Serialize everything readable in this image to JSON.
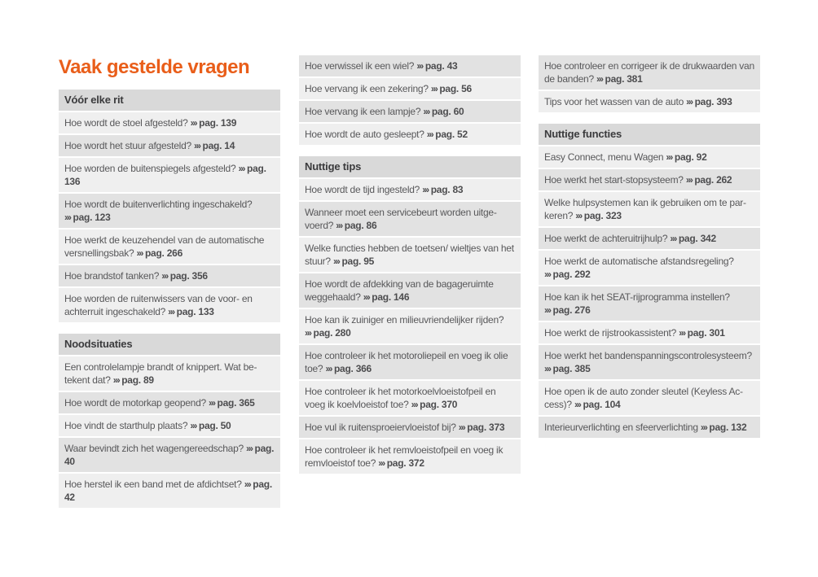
{
  "page": {
    "title": "Vaak gestelde vragen",
    "chevron": "›››",
    "colors": {
      "accent": "#E95E1A",
      "header_bg": "#d9d9d9",
      "header_text": "#3b3b3d",
      "row_light": "#efefef",
      "row_dark": "#e2e2e2",
      "text": "#58585a",
      "ref_text": "#4d4d4f",
      "background": "#ffffff"
    }
  },
  "columns": [
    {
      "blocks": [
        {
          "header": "Vóór elke rit"
        },
        {
          "shade": "light",
          "q": "Hoe wordt de stoel afgesteld?",
          "ref": "pag. 139"
        },
        {
          "shade": "dark",
          "q": "Hoe wordt het stuur afgesteld?",
          "ref": "pag. 14"
        },
        {
          "shade": "light",
          "q": "Hoe worden de buitenspiegels afgesteld?",
          "ref": "pag. 136"
        },
        {
          "shade": "dark",
          "q": "Hoe wordt de buitenverlichting ingeschakeld?",
          "ref": "pag. 123"
        },
        {
          "shade": "light",
          "q": "Hoe werkt de keuzehendel van de automatische versnellingsbak?",
          "ref": "pag. 266"
        },
        {
          "shade": "dark",
          "q": "Hoe brandstof tanken?",
          "ref": "pag. 356"
        },
        {
          "shade": "light",
          "q": "Hoe worden de ruitenwissers van de voor- en achterruit ingeschakeld?",
          "ref": "pag. 133"
        },
        {
          "header": "Noodsituaties"
        },
        {
          "shade": "light",
          "q": "Een controlelampje brandt of knippert. Wat be­tekent dat?",
          "ref": "pag. 89"
        },
        {
          "shade": "dark",
          "q": "Hoe wordt de motorkap geopend?",
          "ref": "pag. 365"
        },
        {
          "shade": "light",
          "q": "Hoe vindt de starthulp plaats?",
          "ref": "pag. 50"
        },
        {
          "shade": "dark",
          "q": "Waar bevindt zich het wagengereedschap?",
          "ref": "pag. 40"
        },
        {
          "shade": "light",
          "q": "Hoe herstel ik een band met de afdichtset?",
          "ref": "pag. 42"
        }
      ]
    },
    {
      "blocks": [
        {
          "shade": "dark",
          "q": "Hoe verwissel ik een wiel?",
          "ref": "pag. 43"
        },
        {
          "shade": "light",
          "q": "Hoe vervang ik een zekering?",
          "ref": "pag. 56"
        },
        {
          "shade": "dark",
          "q": "Hoe vervang ik een lampje?",
          "ref": "pag. 60"
        },
        {
          "shade": "light",
          "q": "Hoe wordt de auto gesleept?",
          "ref": "pag. 52"
        },
        {
          "header": "Nuttige tips"
        },
        {
          "shade": "light",
          "q": "Hoe wordt de tijd ingesteld?",
          "ref": "pag. 83"
        },
        {
          "shade": "dark",
          "q": "Wanneer moet een servicebeurt worden uitge­voerd?",
          "ref": "pag. 86"
        },
        {
          "shade": "light",
          "q": "Welke functies hebben de toetsen/ wieltjes van het stuur?",
          "ref": "pag. 95"
        },
        {
          "shade": "dark",
          "q": "Hoe wordt de afdekking van de bagageruimte weggehaald?",
          "ref": "pag. 146"
        },
        {
          "shade": "light",
          "q": "Hoe kan ik zuiniger en milieuvriendelijker rijden?",
          "ref": "pag. 280"
        },
        {
          "shade": "dark",
          "q": "Hoe controleer ik het motoroliepeil en voeg ik olie toe?",
          "ref": "pag. 366"
        },
        {
          "shade": "light",
          "q": "Hoe controleer ik het motorkoelvloeistofpeil en voeg ik koelvloeistof toe?",
          "ref": "pag. 370"
        },
        {
          "shade": "dark",
          "q": "Hoe vul ik ruitensproeiervloeistof bij?",
          "ref": "pag. 373"
        },
        {
          "shade": "light",
          "q": "Hoe controleer ik het remvloeistofpeil en voeg ik remvloeistof toe?",
          "ref": "pag. 372"
        }
      ]
    },
    {
      "blocks": [
        {
          "shade": "dark",
          "q": "Hoe controleer en corrigeer ik de drukwaarden van de banden?",
          "ref": "pag. 381"
        },
        {
          "shade": "light",
          "q": "Tips voor het wassen van de auto",
          "ref": "pag. 393"
        },
        {
          "header": "Nuttige functies"
        },
        {
          "shade": "light",
          "q": "Easy Connect, menu Wagen",
          "ref": "pag. 92"
        },
        {
          "shade": "dark",
          "q": "Hoe werkt het start-stopsysteem?",
          "ref": "pag. 262"
        },
        {
          "shade": "light",
          "q": "Welke hulpsystemen kan ik gebruiken om te par­keren?",
          "ref": "pag. 323"
        },
        {
          "shade": "dark",
          "q": "Hoe werkt de achteruitrijhulp?",
          "ref": "pag. 342"
        },
        {
          "shade": "light",
          "q": "Hoe werkt de automatische afstandsregeling?",
          "ref": "pag. 292"
        },
        {
          "shade": "dark",
          "q": "Hoe kan ik het SEAT-rijprogramma instellen?",
          "ref": "pag. 276"
        },
        {
          "shade": "light",
          "q": "Hoe werkt de rijstrookassistent?",
          "ref": "pag. 301"
        },
        {
          "shade": "dark",
          "q": "Hoe werkt het bandenspanningscontrolesys­teem?",
          "ref": "pag. 385"
        },
        {
          "shade": "light",
          "q": "Hoe open ik de auto zonder sleutel (Keyless Ac­cess)?",
          "ref": "pag. 104"
        },
        {
          "shade": "dark",
          "q": "Interieurverlichting en sfeerverlichting",
          "ref": "pag. 132"
        }
      ]
    }
  ]
}
